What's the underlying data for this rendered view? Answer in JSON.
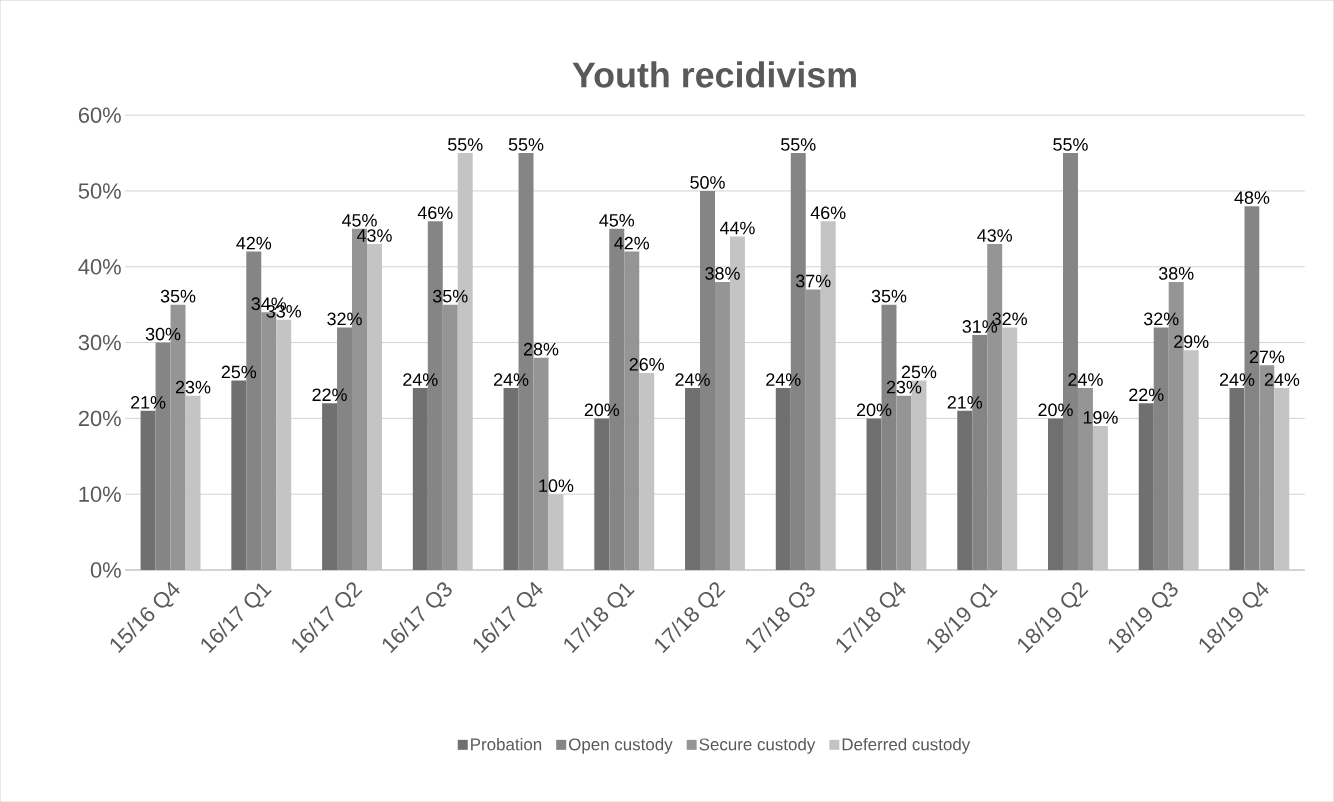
{
  "chart_data": {
    "type": "bar",
    "title": "Youth recidivism",
    "categories": [
      "15/16 Q4",
      "16/17 Q1",
      "16/17 Q2",
      "16/17 Q3",
      "16/17 Q4",
      "17/18 Q1",
      "17/18 Q2",
      "17/18 Q3",
      "17/18 Q4",
      "18/19 Q1",
      "18/19 Q2",
      "18/19 Q3",
      "18/19 Q4"
    ],
    "series": [
      {
        "name": "Probation",
        "color": "#707070",
        "values": [
          21,
          25,
          22,
          24,
          24,
          20,
          24,
          24,
          20,
          21,
          20,
          22,
          24
        ],
        "value_labels": [
          "21%",
          "25%",
          "22%",
          "24%",
          "24%",
          "20%",
          "24%",
          "24%",
          "20%",
          "21%",
          "20%",
          "22%",
          "24%"
        ]
      },
      {
        "name": "Open custody",
        "color": "#858585",
        "values": [
          30,
          42,
          32,
          46,
          55,
          45,
          50,
          55,
          35,
          31,
          55,
          32,
          48
        ],
        "value_labels": [
          "30%",
          "42%",
          "32%",
          "46%",
          "55%",
          "45%",
          "50%",
          "55%",
          "35%",
          "31%",
          "55%",
          "32%",
          "48%"
        ]
      },
      {
        "name": "Secure custody",
        "color": "#959595",
        "values": [
          35,
          34,
          45,
          35,
          28,
          42,
          38,
          37,
          23,
          43,
          24,
          38,
          27
        ],
        "value_labels": [
          "35%",
          "34%",
          "45%",
          "35%",
          "28%",
          "42%",
          "38%",
          "37%",
          "23%",
          "43%",
          "24%",
          "38%",
          "27%"
        ]
      },
      {
        "name": "Deferred custody",
        "color": "#c4c4c4",
        "values": [
          23,
          33,
          43,
          55,
          10,
          26,
          44,
          46,
          25,
          32,
          19,
          29,
          24
        ],
        "value_labels": [
          "23%",
          "33%",
          "43%",
          "55%",
          "10%",
          "26%",
          "44%",
          "46%",
          "25%",
          "32%",
          "19%",
          "29%",
          "24%"
        ]
      }
    ],
    "ylim": [
      0,
      60
    ],
    "yticks": [
      {
        "value": 0,
        "label": "0%"
      },
      {
        "value": 10,
        "label": "10%"
      },
      {
        "value": 20,
        "label": "20%"
      },
      {
        "value": 30,
        "label": "30%"
      },
      {
        "value": 40,
        "label": "40%"
      },
      {
        "value": 50,
        "label": "50%"
      },
      {
        "value": 60,
        "label": "60%"
      }
    ],
    "grid": "y",
    "legend": "bottom"
  }
}
